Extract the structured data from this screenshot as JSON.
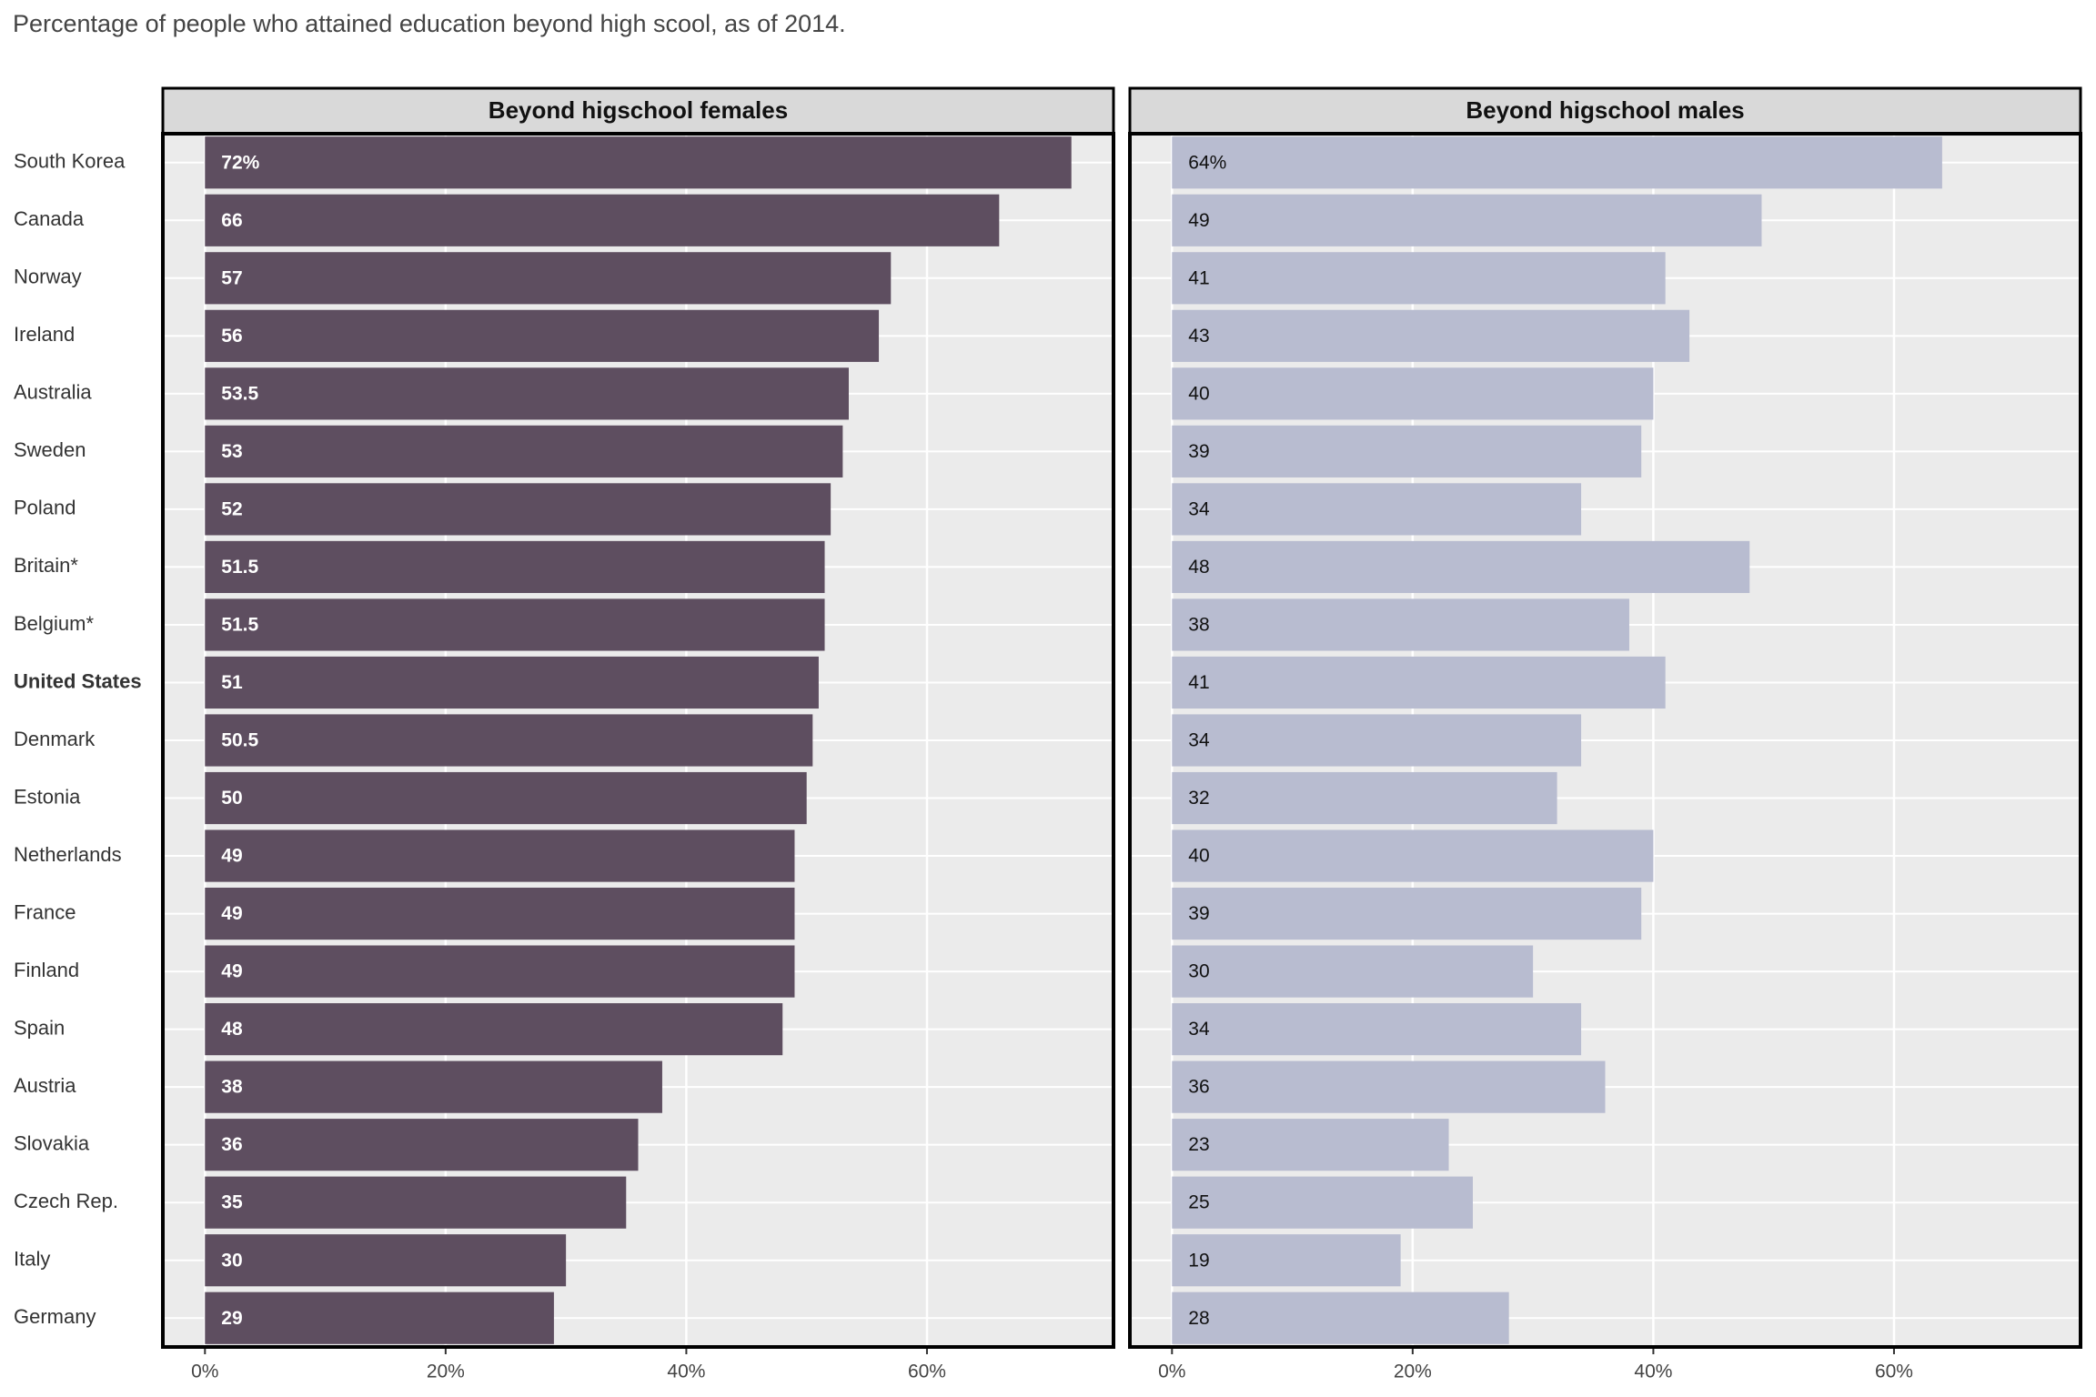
{
  "title": "Percentage of people who attained education beyond high scool, as of 2014.",
  "chart_data": [
    {
      "type": "barh",
      "title": "Beyond higschool females",
      "categories": [
        "South Korea",
        "Canada",
        "Norway",
        "Ireland",
        "Australia",
        "Sweden",
        "Poland",
        "Britain*",
        "Belgium*",
        "United States",
        "Denmark",
        "Estonia",
        "Netherlands",
        "France",
        "Finland",
        "Spain",
        "Austria",
        "Slovakia",
        "Czech Rep.",
        "Italy",
        "Germany"
      ],
      "highlight_category": 9,
      "values": [
        72,
        66,
        57,
        56,
        53.5,
        53,
        52,
        51.5,
        51.5,
        51,
        50.5,
        50,
        49,
        49,
        49,
        48,
        38,
        36,
        35,
        30,
        29
      ],
      "value_labels": [
        "72%",
        "66",
        "57",
        "56",
        "53.5",
        "53",
        "52",
        "51.5",
        "51.5",
        "51",
        "50.5",
        "50",
        "49",
        "49",
        "49",
        "48",
        "38",
        "36",
        "35",
        "30",
        "29"
      ],
      "color": "#5e4e60",
      "label_color": "#ffffff",
      "xlim": [
        -3.5,
        75.5
      ],
      "xticks": [
        {
          "value": 0,
          "label": "0%"
        },
        {
          "value": 20,
          "label": "20%"
        },
        {
          "value": 40,
          "label": "40%"
        },
        {
          "value": 60,
          "label": "60%"
        }
      ],
      "grid": true
    },
    {
      "type": "barh",
      "title": "Beyond higschool males",
      "values": [
        64,
        49,
        41,
        43,
        40,
        39,
        34,
        48,
        38,
        41,
        34,
        32,
        40,
        39,
        30,
        34,
        36,
        23,
        25,
        19,
        28
      ],
      "value_labels": [
        "64%",
        "49",
        "41",
        "43",
        "40",
        "39",
        "34",
        "48",
        "38",
        "41",
        "34",
        "32",
        "40",
        "39",
        "30",
        "34",
        "36",
        "23",
        "25",
        "19",
        "28"
      ],
      "color": "#b8bcd0",
      "label_color": "#111111",
      "xlim": [
        -3.5,
        75.5
      ],
      "xticks": [
        {
          "value": 0,
          "label": "0%"
        },
        {
          "value": 20,
          "label": "20%"
        },
        {
          "value": 40,
          "label": "40%"
        },
        {
          "value": 60,
          "label": "60%"
        }
      ],
      "grid": true
    }
  ]
}
